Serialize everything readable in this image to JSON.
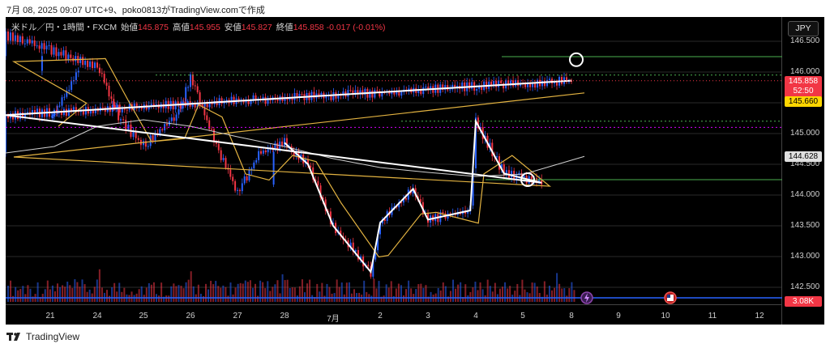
{
  "caption": "7月 08, 2025 09:07 UTC+9、poko0813がTradingView.comで作成",
  "legend": {
    "symbol": "米ドル／円・1時間・FXCM",
    "open_label": "始値",
    "open": "145.875",
    "high_label": "高値",
    "high": "145.955",
    "low_label": "安値",
    "low": "145.827",
    "close_label": "終値",
    "close": "145.858",
    "change": "-0.017 (-0.01%)"
  },
  "currency_button": "JPY",
  "brand": "TradingView",
  "tags": {
    "last_price": "145.858",
    "countdown": "52:50",
    "ma_value": "145.660",
    "long_ma_value": "144.628",
    "volume": "3.08K"
  },
  "colors": {
    "up": "#2962ff",
    "down": "#f23645",
    "fast_ma": "#e3b341",
    "slow_ma": "#cfcfcf",
    "level": "#4caf50",
    "drawing": "#ffffff",
    "volume_line": "#2962ff"
  },
  "icons": [
    "lightning-icon",
    "us-flag-icon",
    "tradingview-logo-icon"
  ],
  "chart_data": {
    "type": "candlestick",
    "title": "米ドル／円・1時間・FXCM",
    "y_ticks": [
      "146.500",
      "146.000",
      "145.500",
      "145.000",
      "144.500",
      "144.000",
      "143.500",
      "143.000",
      "142.500"
    ],
    "x_ticks": [
      "21",
      "24",
      "25",
      "26",
      "27",
      "28",
      "7月",
      "2",
      "3",
      "4",
      "5",
      "8",
      "9",
      "10",
      "11",
      "12"
    ],
    "ylim": [
      142.3,
      146.8
    ],
    "price_path": [
      {
        "x": "21",
        "y": 145.25
      },
      {
        "x": "21.6",
        "y": 146.0
      },
      {
        "x": "22",
        "y": 146.6
      },
      {
        "x": "24",
        "y": 146.1
      },
      {
        "x": "24.5",
        "y": 145.2
      },
      {
        "x": "25",
        "y": 144.8
      },
      {
        "x": "25.7",
        "y": 145.3
      },
      {
        "x": "26",
        "y": 145.9
      },
      {
        "x": "26.5",
        "y": 144.9
      },
      {
        "x": "27",
        "y": 144.05
      },
      {
        "x": "27.5",
        "y": 144.7
      },
      {
        "x": "28",
        "y": 144.85
      },
      {
        "x": "28.5",
        "y": 144.5
      },
      {
        "x": "1",
        "y": 143.5
      },
      {
        "x": "1.8",
        "y": 142.75
      },
      {
        "x": "2",
        "y": 143.55
      },
      {
        "x": "2.7",
        "y": 144.1
      },
      {
        "x": "3",
        "y": 143.6
      },
      {
        "x": "3.9",
        "y": 143.75
      },
      {
        "x": "4",
        "y": 145.2
      },
      {
        "x": "4.6",
        "y": 144.35
      },
      {
        "x": "5.4",
        "y": 144.2
      },
      {
        "x": "6",
        "y": 145.3
      },
      {
        "x": "8",
        "y": 145.86
      }
    ],
    "fast_ma_last": 145.66,
    "slow_ma_last": 144.628,
    "horizontal_levels": [
      {
        "style": "solid",
        "color": "green",
        "y": 146.25
      },
      {
        "style": "dotted",
        "color": "green",
        "y": 145.95
      },
      {
        "style": "dotted",
        "color": "green",
        "y": 145.2
      },
      {
        "style": "dotted",
        "color": "magenta",
        "y": 145.1
      },
      {
        "style": "solid",
        "color": "green",
        "y": 144.25
      }
    ],
    "circled_points": [
      {
        "x": "8",
        "y": 146.2
      },
      {
        "x": "5",
        "y": 144.25
      }
    ],
    "volume_last": "3.08K"
  }
}
